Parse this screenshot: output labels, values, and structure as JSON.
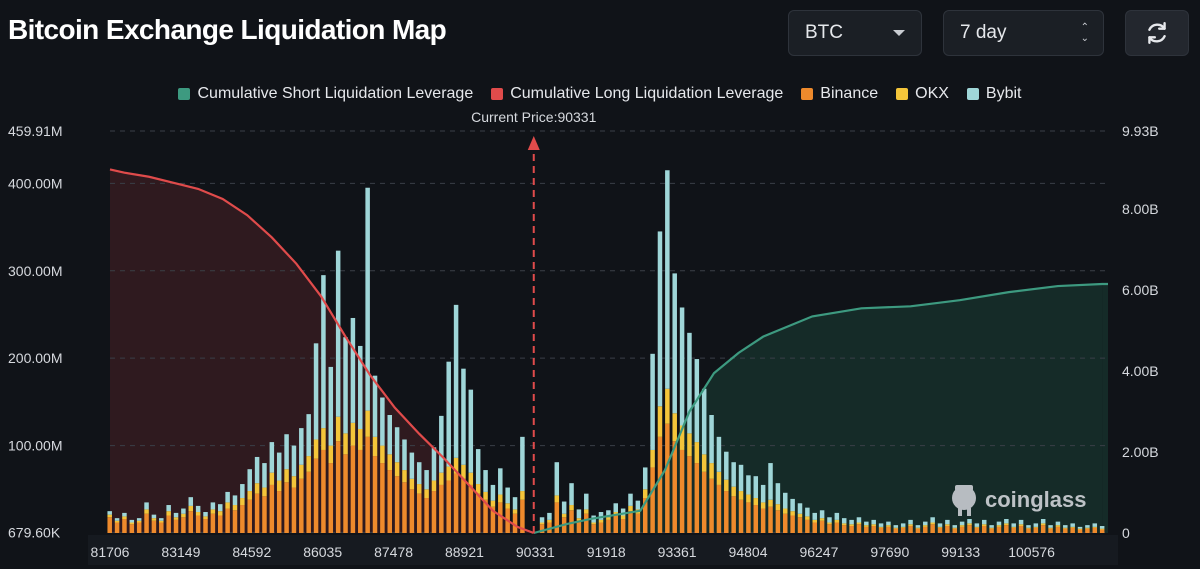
{
  "header": {
    "title": "Bitcoin Exchange Liquidation Map",
    "coin_select": "BTC",
    "period_select": "7 day",
    "refresh_icon": "refresh-icon"
  },
  "chart_data": {
    "type": "bar",
    "current_price_label": "Current Price:90331",
    "current_price": 90331,
    "legend": [
      {
        "label": "Cumulative Short Liquidation Leverage",
        "color": "#3d9a80"
      },
      {
        "label": "Cumulative Long Liquidation Leverage",
        "color": "#e04b4b"
      },
      {
        "label": "Binance",
        "color": "#ee8a2c"
      },
      {
        "label": "OKX",
        "color": "#f4c53a"
      },
      {
        "label": "Bybit",
        "color": "#9fd6d8"
      }
    ],
    "x_tick_labels": [
      "81706",
      "83149",
      "84592",
      "86035",
      "87478",
      "88921",
      "90331",
      "91918",
      "93361",
      "94804",
      "96247",
      "97690",
      "99133",
      "100576"
    ],
    "xlim": [
      81706,
      102019
    ],
    "y_left_tick_labels": [
      "459.91M",
      "400.00M",
      "300.00M",
      "200.00M",
      "100.00M",
      "679.60K"
    ],
    "y_left_values": [
      459.91,
      400,
      300,
      200,
      100,
      0.68
    ],
    "y_left_range": [
      0,
      459.91
    ],
    "y_right_tick_labels": [
      "9.93B",
      "8.00B",
      "6.00B",
      "4.00B",
      "2.00B",
      "0"
    ],
    "y_right_values": [
      9.93,
      8,
      6,
      4,
      2,
      0
    ],
    "y_right_range": [
      0,
      9.93
    ],
    "grid": "horizontal dashed",
    "watermark": "coinglass",
    "long_cumulative": {
      "x": [
        81706,
        82000,
        82500,
        83000,
        83500,
        84000,
        84500,
        85000,
        85500,
        86000,
        86500,
        87000,
        87500,
        88000,
        88500,
        89000,
        89500,
        90000,
        90331
      ],
      "y": [
        8.98,
        8.9,
        8.8,
        8.65,
        8.5,
        8.25,
        7.85,
        7.3,
        6.65,
        5.85,
        4.85,
        3.9,
        3.1,
        2.45,
        1.85,
        1.2,
        0.55,
        0.15,
        0
      ]
    },
    "short_cumulative": {
      "x": [
        90331,
        91000,
        91500,
        92000,
        92500,
        93000,
        93500,
        94000,
        94500,
        95000,
        96000,
        97000,
        98000,
        99000,
        100000,
        101000,
        101900
      ],
      "y": [
        0,
        0.22,
        0.35,
        0.45,
        0.55,
        1.55,
        3.0,
        3.95,
        4.45,
        4.85,
        5.35,
        5.55,
        5.6,
        5.75,
        5.95,
        6.1,
        6.15
      ]
    },
    "bars": [
      {
        "price": 81700,
        "binance": 18,
        "okx": 3,
        "bybit": 4
      },
      {
        "price": 81850,
        "binance": 12,
        "okx": 2,
        "bybit": 3
      },
      {
        "price": 82000,
        "binance": 16,
        "okx": 3,
        "bybit": 4
      },
      {
        "price": 82150,
        "binance": 10,
        "okx": 2,
        "bybit": 3
      },
      {
        "price": 82300,
        "binance": 12,
        "okx": 2,
        "bybit": 3
      },
      {
        "price": 82450,
        "binance": 22,
        "okx": 5,
        "bybit": 8
      },
      {
        "price": 82600,
        "binance": 14,
        "okx": 3,
        "bybit": 4
      },
      {
        "price": 82750,
        "binance": 12,
        "okx": 2,
        "bybit": 3
      },
      {
        "price": 82900,
        "binance": 20,
        "okx": 5,
        "bybit": 7
      },
      {
        "price": 83050,
        "binance": 15,
        "okx": 3,
        "bybit": 5
      },
      {
        "price": 83200,
        "binance": 18,
        "okx": 4,
        "bybit": 6
      },
      {
        "price": 83350,
        "binance": 25,
        "okx": 6,
        "bybit": 10
      },
      {
        "price": 83500,
        "binance": 20,
        "okx": 4,
        "bybit": 7
      },
      {
        "price": 83650,
        "binance": 16,
        "okx": 3,
        "bybit": 5
      },
      {
        "price": 83800,
        "binance": 22,
        "okx": 5,
        "bybit": 8
      },
      {
        "price": 83950,
        "binance": 20,
        "okx": 5,
        "bybit": 8
      },
      {
        "price": 84100,
        "binance": 28,
        "okx": 7,
        "bybit": 12
      },
      {
        "price": 84250,
        "binance": 26,
        "okx": 6,
        "bybit": 11
      },
      {
        "price": 84400,
        "binance": 32,
        "okx": 8,
        "bybit": 16
      },
      {
        "price": 84550,
        "binance": 38,
        "okx": 10,
        "bybit": 25
      },
      {
        "price": 84700,
        "binance": 45,
        "okx": 12,
        "bybit": 30
      },
      {
        "price": 84850,
        "binance": 42,
        "okx": 10,
        "bybit": 28
      },
      {
        "price": 85000,
        "binance": 55,
        "okx": 14,
        "bybit": 35
      },
      {
        "price": 85150,
        "binance": 48,
        "okx": 12,
        "bybit": 32
      },
      {
        "price": 85300,
        "binance": 58,
        "okx": 15,
        "bybit": 40
      },
      {
        "price": 85450,
        "binance": 52,
        "okx": 13,
        "bybit": 35
      },
      {
        "price": 85600,
        "binance": 62,
        "okx": 16,
        "bybit": 42
      },
      {
        "price": 85750,
        "binance": 70,
        "okx": 18,
        "bybit": 48
      },
      {
        "price": 85900,
        "binance": 85,
        "okx": 22,
        "bybit": 110
      },
      {
        "price": 86050,
        "binance": 95,
        "okx": 25,
        "bybit": 175
      },
      {
        "price": 86200,
        "binance": 80,
        "okx": 20,
        "bybit": 90
      },
      {
        "price": 86350,
        "binance": 105,
        "okx": 28,
        "bybit": 190
      },
      {
        "price": 86500,
        "binance": 90,
        "okx": 24,
        "bybit": 110
      },
      {
        "price": 86650,
        "binance": 100,
        "okx": 26,
        "bybit": 120
      },
      {
        "price": 86800,
        "binance": 95,
        "okx": 24,
        "bybit": 95
      },
      {
        "price": 86950,
        "binance": 110,
        "okx": 30,
        "bybit": 255
      },
      {
        "price": 87100,
        "binance": 88,
        "okx": 22,
        "bybit": 70
      },
      {
        "price": 87250,
        "binance": 80,
        "okx": 20,
        "bybit": 55
      },
      {
        "price": 87400,
        "binance": 72,
        "okx": 18,
        "bybit": 45
      },
      {
        "price": 87550,
        "binance": 65,
        "okx": 16,
        "bybit": 40
      },
      {
        "price": 87700,
        "binance": 58,
        "okx": 14,
        "bybit": 35
      },
      {
        "price": 87850,
        "binance": 50,
        "okx": 12,
        "bybit": 30
      },
      {
        "price": 88000,
        "binance": 45,
        "okx": 11,
        "bybit": 25
      },
      {
        "price": 88150,
        "binance": 40,
        "okx": 10,
        "bybit": 22
      },
      {
        "price": 88300,
        "binance": 48,
        "okx": 12,
        "bybit": 38
      },
      {
        "price": 88450,
        "binance": 55,
        "okx": 14,
        "bybit": 65
      },
      {
        "price": 88600,
        "binance": 60,
        "okx": 16,
        "bybit": 120
      },
      {
        "price": 88750,
        "binance": 68,
        "okx": 18,
        "bybit": 175
      },
      {
        "price": 88900,
        "binance": 62,
        "okx": 16,
        "bybit": 110
      },
      {
        "price": 89050,
        "binance": 55,
        "okx": 14,
        "bybit": 95
      },
      {
        "price": 89200,
        "binance": 45,
        "okx": 11,
        "bybit": 40
      },
      {
        "price": 89350,
        "binance": 38,
        "okx": 9,
        "bybit": 25
      },
      {
        "price": 89500,
        "binance": 30,
        "okx": 7,
        "bybit": 18
      },
      {
        "price": 89650,
        "binance": 35,
        "okx": 9,
        "bybit": 30
      },
      {
        "price": 89800,
        "binance": 28,
        "okx": 6,
        "bybit": 18
      },
      {
        "price": 89950,
        "binance": 22,
        "okx": 5,
        "bybit": 14
      },
      {
        "price": 90100,
        "binance": 38,
        "okx": 10,
        "bybit": 62
      },
      {
        "price": 90500,
        "binance": 10,
        "okx": 2,
        "bybit": 6
      },
      {
        "price": 90650,
        "binance": 12,
        "okx": 3,
        "bybit": 8
      },
      {
        "price": 90800,
        "binance": 35,
        "okx": 8,
        "bybit": 38
      },
      {
        "price": 90950,
        "binance": 18,
        "okx": 4,
        "bybit": 14
      },
      {
        "price": 91100,
        "binance": 26,
        "okx": 6,
        "bybit": 25
      },
      {
        "price": 91250,
        "binance": 14,
        "okx": 3,
        "bybit": 10
      },
      {
        "price": 91400,
        "binance": 22,
        "okx": 5,
        "bybit": 18
      },
      {
        "price": 91550,
        "binance": 10,
        "okx": 2,
        "bybit": 8
      },
      {
        "price": 91700,
        "binance": 12,
        "okx": 3,
        "bybit": 9
      },
      {
        "price": 91850,
        "binance": 15,
        "okx": 3,
        "bybit": 8
      },
      {
        "price": 92000,
        "binance": 20,
        "okx": 4,
        "bybit": 10
      },
      {
        "price": 92150,
        "binance": 16,
        "okx": 4,
        "bybit": 8
      },
      {
        "price": 92300,
        "binance": 25,
        "okx": 6,
        "bybit": 14
      },
      {
        "price": 92450,
        "binance": 22,
        "okx": 5,
        "bybit": 10
      },
      {
        "price": 92600,
        "binance": 40,
        "okx": 10,
        "bybit": 25
      },
      {
        "price": 92750,
        "binance": 75,
        "okx": 20,
        "bybit": 110
      },
      {
        "price": 92900,
        "binance": 110,
        "okx": 35,
        "bybit": 200
      },
      {
        "price": 93050,
        "binance": 125,
        "okx": 40,
        "bybit": 250
      },
      {
        "price": 93200,
        "binance": 105,
        "okx": 32,
        "bybit": 160
      },
      {
        "price": 93350,
        "binance": 95,
        "okx": 28,
        "bybit": 135
      },
      {
        "price": 93500,
        "binance": 88,
        "okx": 26,
        "bybit": 115
      },
      {
        "price": 93650,
        "binance": 80,
        "okx": 24,
        "bybit": 95
      },
      {
        "price": 93800,
        "binance": 70,
        "okx": 20,
        "bybit": 75
      },
      {
        "price": 93950,
        "binance": 62,
        "okx": 18,
        "bybit": 55
      },
      {
        "price": 94100,
        "binance": 55,
        "okx": 15,
        "bybit": 40
      },
      {
        "price": 94250,
        "binance": 48,
        "okx": 13,
        "bybit": 32
      },
      {
        "price": 94400,
        "binance": 42,
        "okx": 11,
        "bybit": 28
      },
      {
        "price": 94550,
        "binance": 38,
        "okx": 10,
        "bybit": 30
      },
      {
        "price": 94700,
        "binance": 35,
        "okx": 9,
        "bybit": 22
      },
      {
        "price": 94850,
        "binance": 32,
        "okx": 8,
        "bybit": 25
      },
      {
        "price": 95000,
        "binance": 28,
        "okx": 7,
        "bybit": 20
      },
      {
        "price": 95150,
        "binance": 30,
        "okx": 8,
        "bybit": 42
      },
      {
        "price": 95300,
        "binance": 26,
        "okx": 7,
        "bybit": 24
      },
      {
        "price": 95450,
        "binance": 22,
        "okx": 6,
        "bybit": 18
      },
      {
        "price": 95600,
        "binance": 20,
        "okx": 5,
        "bybit": 14
      },
      {
        "price": 95750,
        "binance": 18,
        "okx": 4,
        "bybit": 12
      },
      {
        "price": 95900,
        "binance": 15,
        "okx": 4,
        "bybit": 10
      },
      {
        "price": 96050,
        "binance": 12,
        "okx": 3,
        "bybit": 8
      },
      {
        "price": 96200,
        "binance": 14,
        "okx": 3,
        "bybit": 9
      },
      {
        "price": 96350,
        "binance": 10,
        "okx": 2,
        "bybit": 6
      },
      {
        "price": 96500,
        "binance": 12,
        "okx": 3,
        "bybit": 8
      },
      {
        "price": 96650,
        "binance": 9,
        "okx": 2,
        "bybit": 6
      },
      {
        "price": 96800,
        "binance": 8,
        "okx": 2,
        "bybit": 5
      },
      {
        "price": 96950,
        "binance": 10,
        "okx": 2,
        "bybit": 6
      },
      {
        "price": 97100,
        "binance": 7,
        "okx": 2,
        "bybit": 4
      },
      {
        "price": 97250,
        "binance": 8,
        "okx": 2,
        "bybit": 5
      },
      {
        "price": 97400,
        "binance": 6,
        "okx": 1,
        "bybit": 4
      },
      {
        "price": 97550,
        "binance": 7,
        "okx": 2,
        "bybit": 4
      },
      {
        "price": 97700,
        "binance": 5,
        "okx": 1,
        "bybit": 3
      },
      {
        "price": 97850,
        "binance": 6,
        "okx": 1,
        "bybit": 4
      },
      {
        "price": 98000,
        "binance": 8,
        "okx": 2,
        "bybit": 5
      },
      {
        "price": 98150,
        "binance": 5,
        "okx": 1,
        "bybit": 3
      },
      {
        "price": 98300,
        "binance": 7,
        "okx": 2,
        "bybit": 4
      },
      {
        "price": 98450,
        "binance": 10,
        "okx": 2,
        "bybit": 6
      },
      {
        "price": 98600,
        "binance": 6,
        "okx": 1,
        "bybit": 4
      },
      {
        "price": 98750,
        "binance": 8,
        "okx": 2,
        "bybit": 5
      },
      {
        "price": 98900,
        "binance": 5,
        "okx": 1,
        "bybit": 3
      },
      {
        "price": 99050,
        "binance": 7,
        "okx": 2,
        "bybit": 4
      },
      {
        "price": 99200,
        "binance": 9,
        "okx": 2,
        "bybit": 5
      },
      {
        "price": 99350,
        "binance": 6,
        "okx": 1,
        "bybit": 4
      },
      {
        "price": 99500,
        "binance": 8,
        "okx": 2,
        "bybit": 5
      },
      {
        "price": 99650,
        "binance": 5,
        "okx": 1,
        "bybit": 3
      },
      {
        "price": 99800,
        "binance": 7,
        "okx": 2,
        "bybit": 4
      },
      {
        "price": 99950,
        "binance": 9,
        "okx": 2,
        "bybit": 5
      },
      {
        "price": 100100,
        "binance": 6,
        "okx": 1,
        "bybit": 4
      },
      {
        "price": 100250,
        "binance": 8,
        "okx": 2,
        "bybit": 5
      },
      {
        "price": 100400,
        "binance": 5,
        "okx": 1,
        "bybit": 3
      },
      {
        "price": 100550,
        "binance": 6,
        "okx": 1,
        "bybit": 4
      },
      {
        "price": 100700,
        "binance": 9,
        "okx": 2,
        "bybit": 5
      },
      {
        "price": 100850,
        "binance": 5,
        "okx": 1,
        "bybit": 3
      },
      {
        "price": 101000,
        "binance": 7,
        "okx": 2,
        "bybit": 4
      },
      {
        "price": 101150,
        "binance": 5,
        "okx": 1,
        "bybit": 3
      },
      {
        "price": 101300,
        "binance": 6,
        "okx": 1,
        "bybit": 4
      },
      {
        "price": 101450,
        "binance": 4,
        "okx": 1,
        "bybit": 2
      },
      {
        "price": 101600,
        "binance": 5,
        "okx": 1,
        "bybit": 3
      },
      {
        "price": 101750,
        "binance": 6,
        "okx": 1,
        "bybit": 4
      },
      {
        "price": 101900,
        "binance": 4,
        "okx": 1,
        "bybit": 3
      }
    ]
  }
}
